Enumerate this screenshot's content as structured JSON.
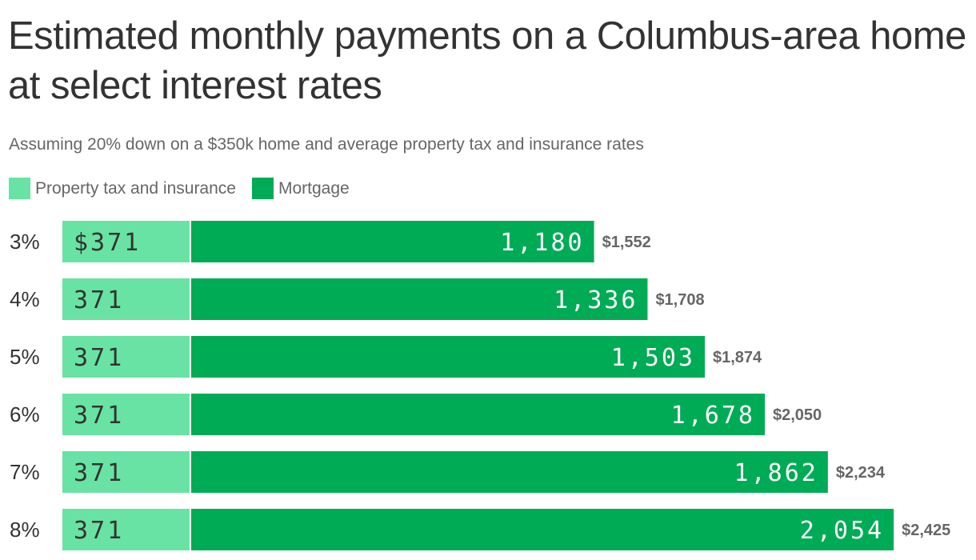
{
  "chart_data": {
    "type": "bar",
    "orientation": "horizontal",
    "stacked": true,
    "title": "Estimated monthly payments on a Columbus-area home at select interest rates",
    "subtitle": "Assuming 20% down on a $350k home and average property tax and insurance rates",
    "categories": [
      "3%",
      "4%",
      "5%",
      "6%",
      "7%",
      "8%"
    ],
    "series": [
      {
        "name": "Property tax and insurance",
        "color": "#68e3a3",
        "text_color": "#333333",
        "values": [
          371,
          371,
          371,
          371,
          371,
          371
        ],
        "labels": [
          "$371",
          "371",
          "371",
          "371",
          "371",
          "371"
        ]
      },
      {
        "name": "Mortgage",
        "color": "#00ab55",
        "text_color": "#ffffff",
        "values": [
          1180,
          1336,
          1503,
          1678,
          1862,
          2054
        ],
        "labels": [
          "1,180",
          "1,336",
          "1,503",
          "1,678",
          "1,862",
          "2,054"
        ]
      }
    ],
    "totals": [
      1552,
      1708,
      1874,
      2050,
      2234,
      2425
    ],
    "total_labels": [
      "$1,552",
      "$1,708",
      "$1,874",
      "$2,050",
      "$2,234",
      "$2,425"
    ],
    "legend_position": "top-left",
    "grid": false
  }
}
